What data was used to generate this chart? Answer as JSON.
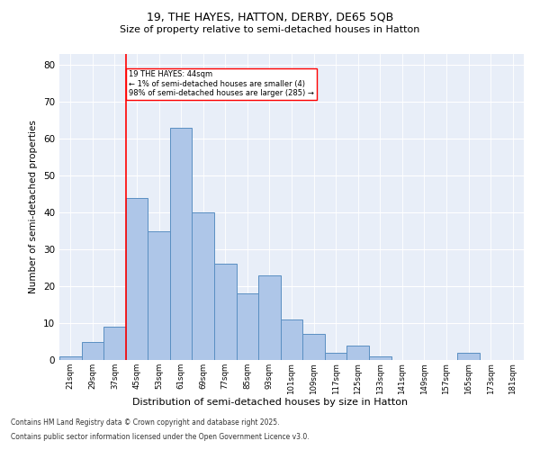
{
  "title1": "19, THE HAYES, HATTON, DERBY, DE65 5QB",
  "title2": "Size of property relative to semi-detached houses in Hatton",
  "xlabel": "Distribution of semi-detached houses by size in Hatton",
  "ylabel": "Number of semi-detached properties",
  "footnote1": "Contains HM Land Registry data © Crown copyright and database right 2025.",
  "footnote2": "Contains public sector information licensed under the Open Government Licence v3.0.",
  "annotation_title": "19 THE HAYES: 44sqm",
  "annotation_line1": "← 1% of semi-detached houses are smaller (4)",
  "annotation_line2": "98% of semi-detached houses are larger (285) →",
  "bin_labels": [
    "21sqm",
    "29sqm",
    "37sqm",
    "45sqm",
    "53sqm",
    "61sqm",
    "69sqm",
    "77sqm",
    "85sqm",
    "93sqm",
    "101sqm",
    "109sqm",
    "117sqm",
    "125sqm",
    "133sqm",
    "141sqm",
    "149sqm",
    "157sqm",
    "165sqm",
    "173sqm",
    "181sqm"
  ],
  "bar_values": [
    1,
    5,
    9,
    44,
    35,
    63,
    40,
    26,
    18,
    23,
    11,
    7,
    2,
    4,
    1,
    0,
    0,
    0,
    2,
    0,
    0
  ],
  "bar_color": "#aec6e8",
  "bar_edge_color": "#5a8fc2",
  "marker_color": "red",
  "bg_color": "#e8eef8",
  "ylim": [
    0,
    83
  ],
  "yticks": [
    0,
    10,
    20,
    30,
    40,
    50,
    60,
    70,
    80
  ]
}
